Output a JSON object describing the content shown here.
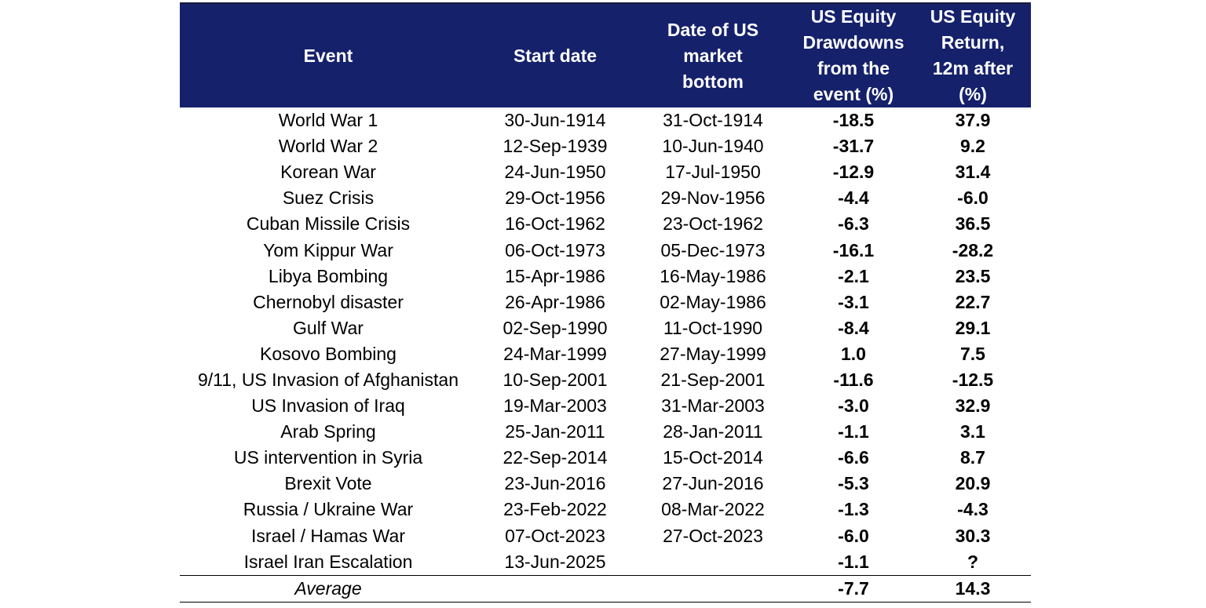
{
  "headers": {
    "event": "Event",
    "start_date": [
      "Start date"
    ],
    "bottom_date": [
      "Date of US",
      "market",
      "bottom"
    ],
    "drawdown": [
      "US Equity",
      "Drawdowns",
      "from the",
      "event (%)"
    ],
    "return_12m": [
      "US Equity",
      "Return,",
      "12m after",
      "(%)"
    ]
  },
  "colors": {
    "header_bg": "#15216b",
    "header_text": "#ffffff"
  },
  "rows": [
    {
      "event": "World War 1",
      "start": "30-Jun-1914",
      "bottom": "31-Oct-1914",
      "drawdown": "-18.5",
      "return": "37.9"
    },
    {
      "event": "World War 2",
      "start": "12-Sep-1939",
      "bottom": "10-Jun-1940",
      "drawdown": "-31.7",
      "return": "9.2"
    },
    {
      "event": "Korean War",
      "start": "24-Jun-1950",
      "bottom": "17-Jul-1950",
      "drawdown": "-12.9",
      "return": "31.4"
    },
    {
      "event": "Suez Crisis",
      "start": "29-Oct-1956",
      "bottom": "29-Nov-1956",
      "drawdown": "-4.4",
      "return": "-6.0"
    },
    {
      "event": "Cuban Missile Crisis",
      "start": "16-Oct-1962",
      "bottom": "23-Oct-1962",
      "drawdown": "-6.3",
      "return": "36.5"
    },
    {
      "event": "Yom Kippur War",
      "start": "06-Oct-1973",
      "bottom": "05-Dec-1973",
      "drawdown": "-16.1",
      "return": "-28.2"
    },
    {
      "event": "Libya Bombing",
      "start": "15-Apr-1986",
      "bottom": "16-May-1986",
      "drawdown": "-2.1",
      "return": "23.5"
    },
    {
      "event": "Chernobyl disaster",
      "start": "26-Apr-1986",
      "bottom": "02-May-1986",
      "drawdown": "-3.1",
      "return": "22.7"
    },
    {
      "event": "Gulf War",
      "start": "02-Sep-1990",
      "bottom": "11-Oct-1990",
      "drawdown": "-8.4",
      "return": "29.1"
    },
    {
      "event": "Kosovo Bombing",
      "start": "24-Mar-1999",
      "bottom": "27-May-1999",
      "drawdown": "1.0",
      "return": "7.5"
    },
    {
      "event": "9/11, US Invasion of Afghanistan",
      "start": "10-Sep-2001",
      "bottom": "21-Sep-2001",
      "drawdown": "-11.6",
      "return": "-12.5"
    },
    {
      "event": "US Invasion of Iraq",
      "start": "19-Mar-2003",
      "bottom": "31-Mar-2003",
      "drawdown": "-3.0",
      "return": "32.9"
    },
    {
      "event": "Arab Spring",
      "start": "25-Jan-2011",
      "bottom": "28-Jan-2011",
      "drawdown": "-1.1",
      "return": "3.1"
    },
    {
      "event": "US intervention in Syria",
      "start": "22-Sep-2014",
      "bottom": "15-Oct-2014",
      "drawdown": "-6.6",
      "return": "8.7"
    },
    {
      "event": "Brexit Vote",
      "start": "23-Jun-2016",
      "bottom": "27-Jun-2016",
      "drawdown": "-5.3",
      "return": "20.9"
    },
    {
      "event": "Russia / Ukraine War",
      "start": "23-Feb-2022",
      "bottom": "08-Mar-2022",
      "drawdown": "-1.3",
      "return": "-4.3"
    },
    {
      "event": "Israel / Hamas War",
      "start": "07-Oct-2023",
      "bottom": "27-Oct-2023",
      "drawdown": "-6.0",
      "return": "30.3"
    },
    {
      "event": "Israel Iran Escalation",
      "start": "13-Jun-2025",
      "bottom": "",
      "drawdown": "-1.1",
      "return": "?"
    }
  ],
  "average": {
    "label": "Average",
    "drawdown": "-7.7",
    "return": "14.3"
  }
}
